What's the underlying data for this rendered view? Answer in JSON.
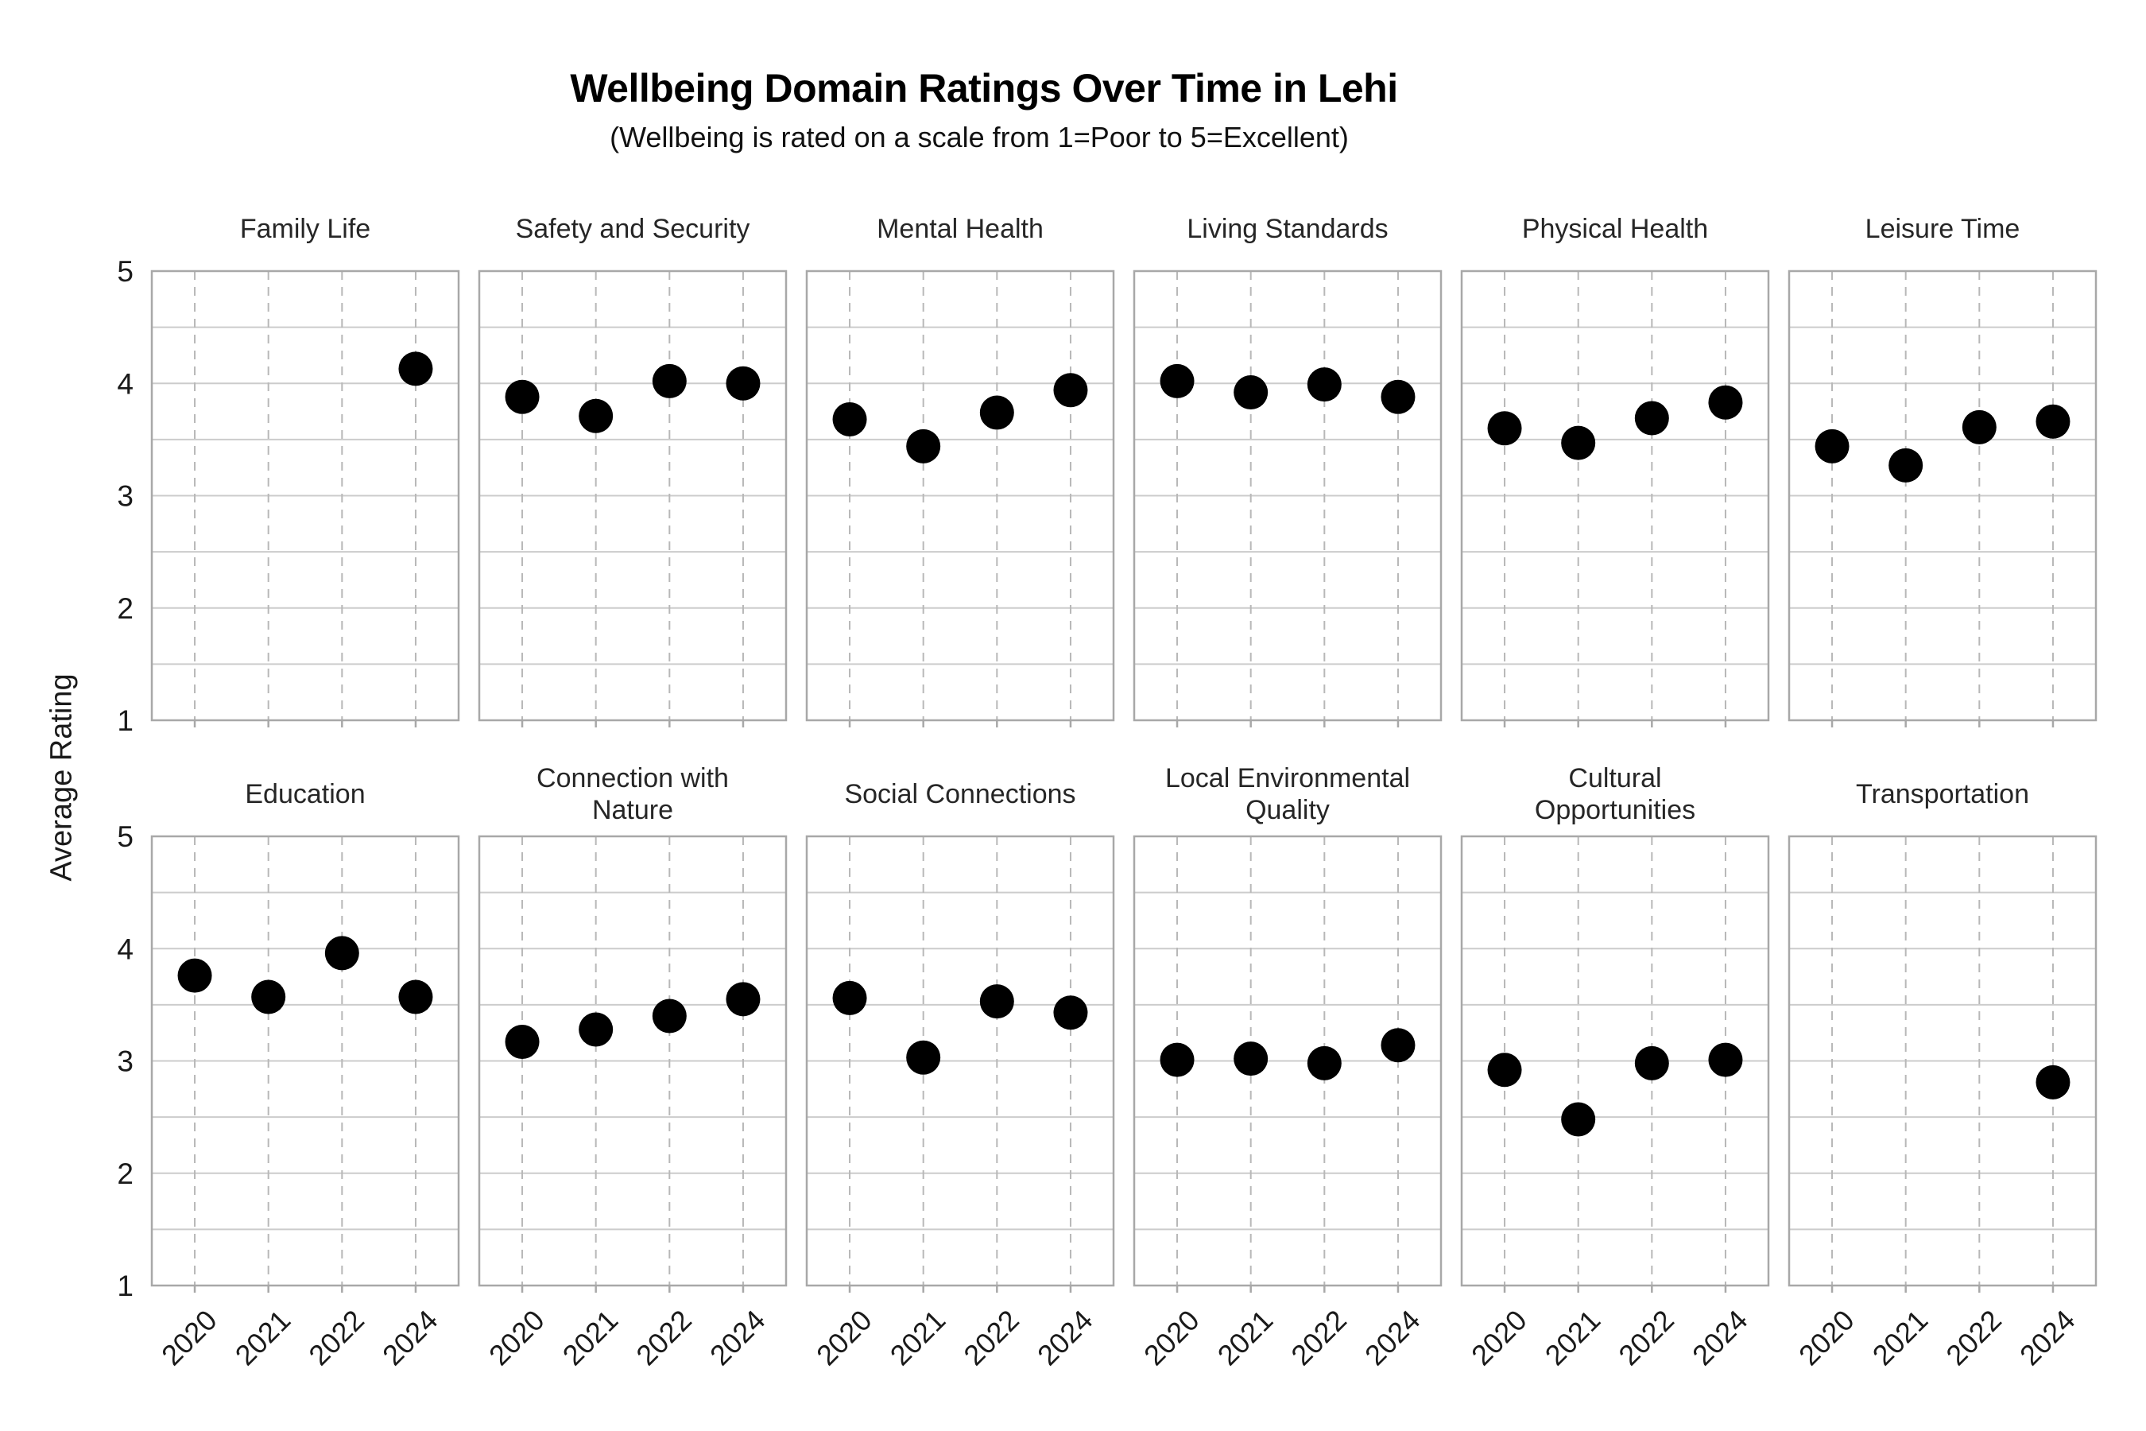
{
  "style": {
    "background": "#ffffff",
    "point_color": "#000000",
    "grid_color": "#cccccc",
    "frame_color": "#a8a8a8",
    "dashed_color": "#b8b8b8",
    "text_color": "#1a1a1a",
    "title_color": "#000000"
  },
  "chart_data": {
    "type": "scatter",
    "layout": "facet-grid 2 rows x 6 cols, shared axes",
    "title": "Wellbeing Domain Ratings Over Time in Lehi",
    "subtitle": "(Wellbeing is rated on a scale from 1=Poor to 5=Excellent)",
    "ylabel": "Average Rating",
    "xlabel": "",
    "categories": [
      "2020",
      "2021",
      "2022",
      "2024"
    ],
    "ylim": [
      1,
      5
    ],
    "yticks": [
      5,
      4,
      3,
      2,
      1
    ],
    "grid_step": 0.5,
    "grid": "horizontal solid every 0.5, vertical dashed at each year",
    "legend": "none",
    "facets": [
      {
        "title": "Family Life",
        "values": [
          null,
          null,
          null,
          4.13
        ]
      },
      {
        "title": "Safety and Security",
        "values": [
          3.88,
          3.71,
          4.02,
          4.0
        ]
      },
      {
        "title": "Mental Health",
        "values": [
          3.68,
          3.44,
          3.74,
          3.94
        ]
      },
      {
        "title": "Living Standards",
        "values": [
          4.02,
          3.92,
          3.99,
          3.88
        ]
      },
      {
        "title": "Physical Health",
        "values": [
          3.6,
          3.47,
          3.69,
          3.83
        ]
      },
      {
        "title": "Leisure Time",
        "values": [
          3.44,
          3.27,
          3.61,
          3.66
        ]
      },
      {
        "title": "Education",
        "values": [
          3.76,
          3.57,
          3.96,
          3.57
        ]
      },
      {
        "title": "Connection with\nNature",
        "values": [
          3.17,
          3.28,
          3.4,
          3.55
        ]
      },
      {
        "title": "Social Connections",
        "values": [
          3.56,
          3.03,
          3.53,
          3.43
        ]
      },
      {
        "title": "Local Environmental\nQuality",
        "values": [
          3.01,
          3.02,
          2.98,
          3.14
        ]
      },
      {
        "title": "Cultural\nOpportunities",
        "values": [
          2.92,
          2.48,
          2.98,
          3.01
        ]
      },
      {
        "title": "Transportation",
        "values": [
          null,
          null,
          null,
          2.81
        ]
      }
    ]
  }
}
